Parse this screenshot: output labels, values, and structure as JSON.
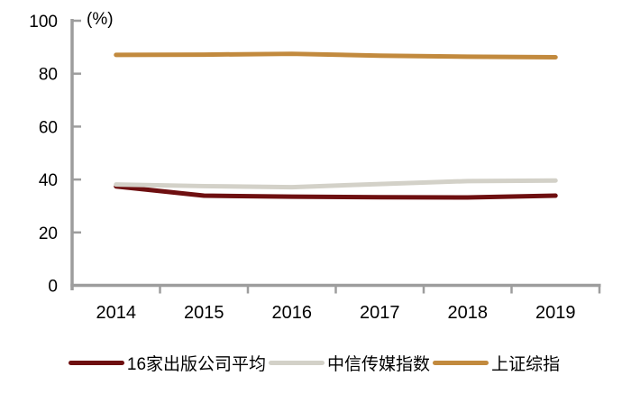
{
  "colors": {
    "background": "#FFFFFF",
    "axis": "#9D9D9D",
    "text": "#000000",
    "series_publishers": "#6E0F10",
    "series_citic_media": "#D3D1C8",
    "series_sse": "#C28A3E"
  },
  "chart_data": {
    "type": "line",
    "title": "",
    "ylabel": "(%)",
    "xlabel": "",
    "x": [
      "2014",
      "2015",
      "2016",
      "2017",
      "2018",
      "2019"
    ],
    "ylim": [
      0,
      100
    ],
    "yticks": [
      0,
      20,
      40,
      60,
      80,
      100
    ],
    "grid": false,
    "legend_position": "bottom",
    "series": [
      {
        "id": "publishers-avg",
        "name": "16家出版公司平均",
        "color": "#6E0F10",
        "values": [
          37.4,
          33.9,
          33.5,
          33.3,
          33.2,
          33.9
        ]
      },
      {
        "id": "citic-media-index",
        "name": "中信传媒指数",
        "color": "#D3D1C8",
        "values": [
          38.1,
          37.5,
          37.1,
          38.3,
          39.4,
          39.6
        ]
      },
      {
        "id": "sse-composite",
        "name": "上证综指",
        "color": "#C28A3E",
        "values": [
          87.1,
          87.2,
          87.5,
          86.8,
          86.4,
          86.2
        ]
      }
    ]
  }
}
